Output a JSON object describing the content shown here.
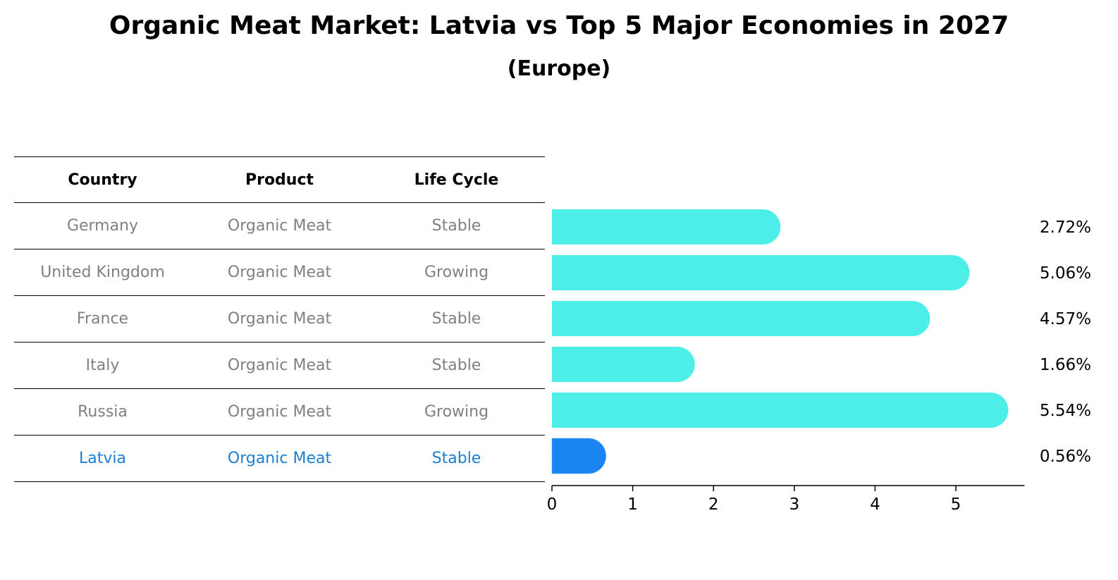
{
  "title": "Organic Meat Market: Latvia vs Top 5 Major Economies in 2027",
  "subtitle": "(Europe)",
  "table": {
    "headers": [
      "Country",
      "Product",
      "Life Cycle"
    ],
    "rows": [
      {
        "country": "Germany",
        "product": "Organic Meat",
        "life_cycle": "Stable"
      },
      {
        "country": "United Kingdom",
        "product": "Organic Meat",
        "life_cycle": "Growing"
      },
      {
        "country": "France",
        "product": "Organic Meat",
        "life_cycle": "Stable"
      },
      {
        "country": "Italy",
        "product": "Organic Meat",
        "life_cycle": "Stable"
      },
      {
        "country": "Russia",
        "product": "Organic Meat",
        "life_cycle": "Growing"
      },
      {
        "country": "Latvia",
        "product": "Organic Meat",
        "life_cycle": "Stable"
      }
    ],
    "highlight_row": 5
  },
  "colors": {
    "bar": "#4dede8",
    "highlight_bar": "#1a84f0",
    "highlight_text": "#1a7fd4",
    "row_text": "#808080"
  },
  "chart_data": {
    "type": "bar",
    "orientation": "horizontal",
    "categories": [
      "Germany",
      "United Kingdom",
      "France",
      "Italy",
      "Russia",
      "Latvia"
    ],
    "values": [
      2.72,
      5.06,
      4.57,
      1.66,
      5.54,
      0.56
    ],
    "value_labels": [
      "2.72%",
      "5.06%",
      "4.57%",
      "1.66%",
      "5.54%",
      "0.56%"
    ],
    "xlim": [
      0,
      5.85
    ],
    "xticks": [
      0,
      1,
      2,
      3,
      4,
      5
    ],
    "xlabel": "",
    "ylabel": "",
    "grid": false,
    "highlight_index": 5
  }
}
